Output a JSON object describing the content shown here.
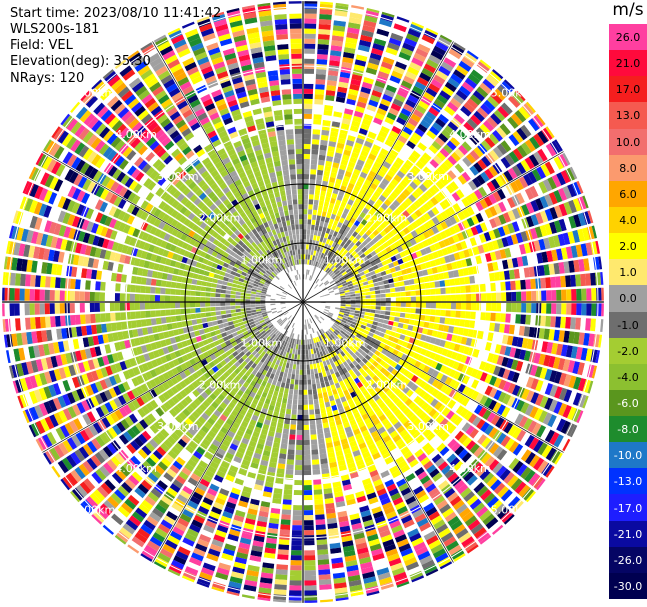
{
  "header": {
    "start_time": "Start time: 2023/08/10 11:41:42",
    "instrument": "WLS200s-181",
    "field": "Field: VEL",
    "elevation": "Elevation(deg): 35.30",
    "nrays": "NRays: 120"
  },
  "colorbar": {
    "unit": "m/s",
    "levels": [
      {
        "label": "26.0",
        "color": "#ff3fa0"
      },
      {
        "label": "21.0",
        "color": "#ff0a3c"
      },
      {
        "label": "17.0",
        "color": "#f51e1e"
      },
      {
        "label": "13.0",
        "color": "#f55a50"
      },
      {
        "label": "10.0",
        "color": "#f26e6e"
      },
      {
        "label": "8.0",
        "color": "#fb9a6e"
      },
      {
        "label": "6.0",
        "color": "#ffa600"
      },
      {
        "label": "4.0",
        "color": "#ffd200"
      },
      {
        "label": "2.0",
        "color": "#ffff00"
      },
      {
        "label": "1.0",
        "color": "#ffe96e"
      },
      {
        "label": "0.0",
        "color": "#a0a0a0"
      },
      {
        "label": "-1.0",
        "color": "#6e6e6e"
      },
      {
        "label": "-2.0",
        "color": "#a4cd32"
      },
      {
        "label": "-4.0",
        "color": "#8cc030"
      },
      {
        "label": "-6.0",
        "color": "#5a961e"
      },
      {
        "label": "-8.0",
        "color": "#1e8c2d"
      },
      {
        "label": "-10.0",
        "color": "#1e78c8"
      },
      {
        "label": "-13.0",
        "color": "#0032ff"
      },
      {
        "label": "-17.0",
        "color": "#1e1eff"
      },
      {
        "label": "-21.0",
        "color": "#0a0aa0"
      },
      {
        "label": "-26.0",
        "color": "#050564"
      },
      {
        "label": "-30.0",
        "color": "#000050"
      }
    ]
  },
  "chart_data": {
    "type": "heatmap",
    "subtype": "ppi",
    "field": "VEL",
    "nrays": 120,
    "ring_labels": [
      "1.00km",
      "2.00km",
      "3.00km",
      "4.00km",
      "5.00km"
    ],
    "ring_ranges_km": [
      1,
      2,
      3,
      4,
      5
    ],
    "max_range_km": 5.1,
    "spoke_angles_deg": [
      0,
      30,
      60,
      90,
      120,
      150,
      180,
      210,
      240,
      270,
      300,
      330
    ],
    "zones": [
      {
        "name": "inner",
        "range_km": [
          0.3,
          1.5
        ]
      },
      {
        "name": "ring",
        "range_km": [
          1.5,
          2.9
        ]
      },
      {
        "name": "noise",
        "range_km": [
          3.4,
          5.1
        ]
      }
    ]
  }
}
